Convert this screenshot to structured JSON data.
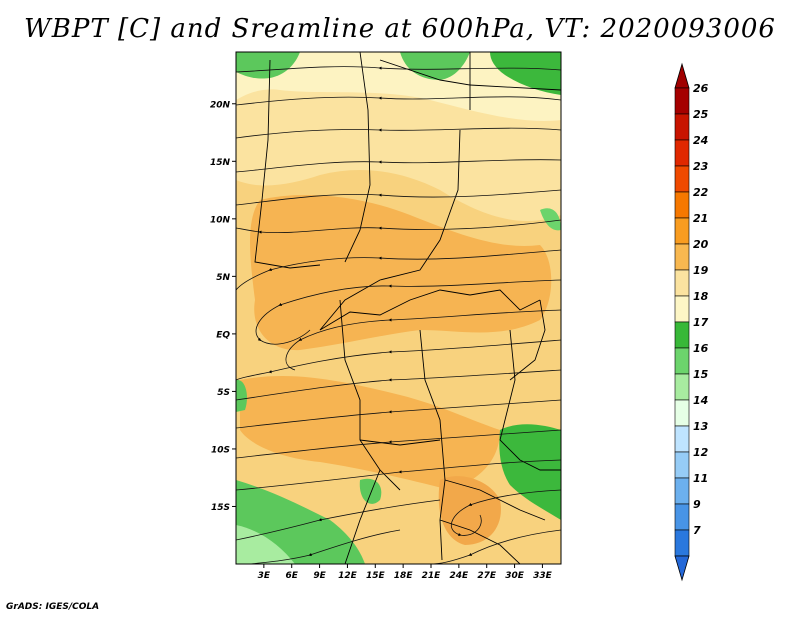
{
  "title": "WBPT [C] and Sreamline at 600hPa, VT: 2020093006",
  "credit": "GrADS: IGES/COLA",
  "map": {
    "lat_labels": [
      "20N",
      "15N",
      "10N",
      "5N",
      "EQ",
      "5S",
      "10S",
      "15S"
    ],
    "lat_values": [
      20,
      15,
      10,
      5,
      0,
      -5,
      -10,
      -15
    ],
    "lon_labels": [
      "3E",
      "6E",
      "9E",
      "12E",
      "15E",
      "18E",
      "21E",
      "24E",
      "27E",
      "30E",
      "33E"
    ],
    "lon_values": [
      3,
      6,
      9,
      12,
      15,
      18,
      21,
      24,
      27,
      30,
      33
    ],
    "lat_range": [
      -20,
      24.5
    ],
    "lon_range": [
      0,
      35
    ],
    "fields": [
      "Wet-bulb potential temperature",
      "Streamlines"
    ]
  },
  "colorbar": {
    "levels": [
      "26",
      "25",
      "24",
      "23",
      "22",
      "21",
      "20",
      "19",
      "18",
      "17",
      "16",
      "15",
      "14",
      "13",
      "12",
      "11",
      "9",
      "7"
    ],
    "colors": [
      "#a50000",
      "#c81400",
      "#e02800",
      "#f04a00",
      "#f67800",
      "#f89c20",
      "#f8b850",
      "#fbe3a0",
      "#fdf6c6",
      "#38b838",
      "#6cd46c",
      "#a8eca0",
      "#e6ffe6",
      "#bfe4ff",
      "#96ccf6",
      "#6cb0ee",
      "#4894e6",
      "#2a78de"
    ],
    "top_arrow_color": "#a00000",
    "bottom_arrow_color": "#2468d8"
  }
}
